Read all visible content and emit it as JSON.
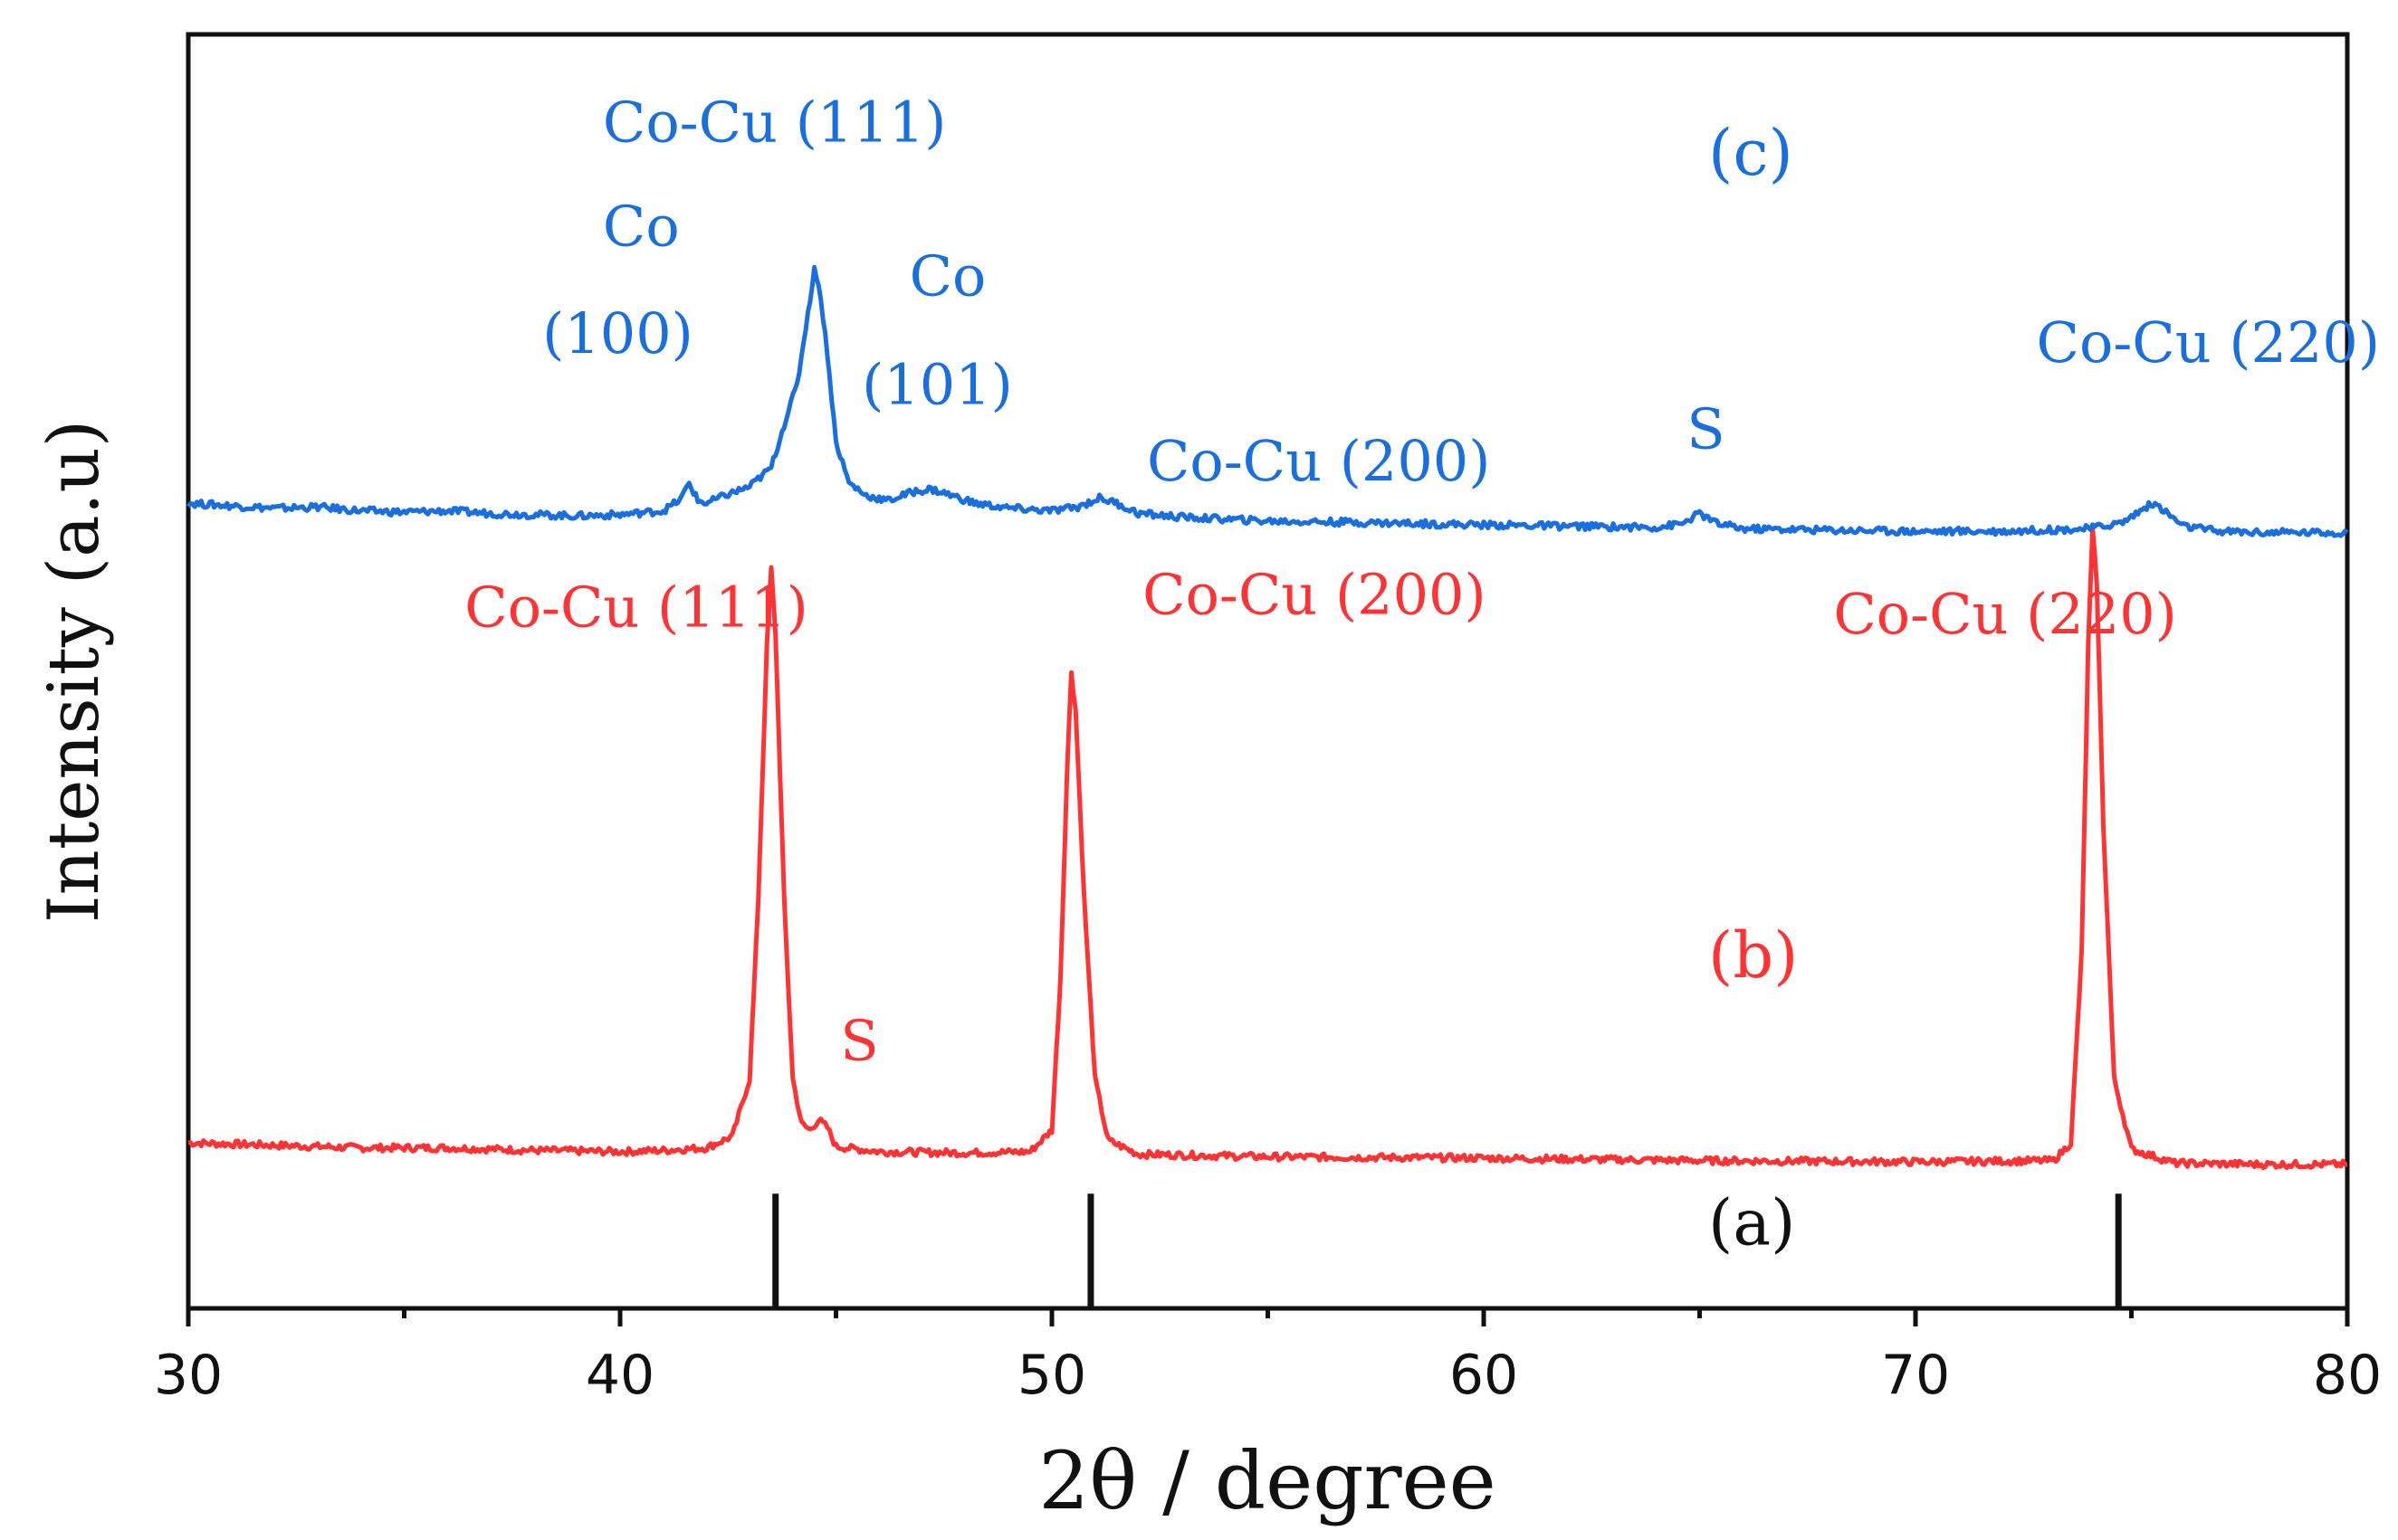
{
  "chart_data": {
    "type": "line",
    "title": "",
    "xlabel": "2θ / degree",
    "ylabel": "Intensity (a.u)",
    "xlim": [
      30,
      80
    ],
    "ylim": [
      0,
      100
    ],
    "x_ticks": [
      30,
      40,
      50,
      60,
      70,
      80
    ],
    "x_ticks_minor": [
      35,
      45,
      55,
      65,
      75
    ],
    "grid": false,
    "legend": "none",
    "colors": {
      "b": "#ff3333",
      "c": "#1a6fe0",
      "a": "#111111",
      "axis": "#111111"
    },
    "curve_labels": [
      {
        "series": "c",
        "text": "(c)",
        "x": 65.2,
        "y": 89
      },
      {
        "series": "b",
        "text": "(b)",
        "x": 65.2,
        "y": 26
      },
      {
        "series": "a",
        "text": "(a)",
        "x": 65.2,
        "y": 5
      }
    ],
    "reference_a": {
      "name": "(a)",
      "lines": [
        {
          "x": 43.6,
          "y_top": 9
        },
        {
          "x": 50.9,
          "y_top": 9
        },
        {
          "x": 74.7,
          "y_top": 9
        }
      ]
    },
    "series": [
      {
        "name": "(b)",
        "points": [
          [
            30,
            13.0
          ],
          [
            32,
            12.8
          ],
          [
            34,
            12.6
          ],
          [
            36,
            12.6
          ],
          [
            38,
            12.4
          ],
          [
            40,
            12.3
          ],
          [
            41,
            12.4
          ],
          [
            42,
            12.6
          ],
          [
            42.6,
            13.5
          ],
          [
            43.0,
            18
          ],
          [
            43.2,
            32
          ],
          [
            43.4,
            52
          ],
          [
            43.5,
            58
          ],
          [
            43.6,
            53
          ],
          [
            43.8,
            32
          ],
          [
            44.0,
            18
          ],
          [
            44.2,
            14.5
          ],
          [
            44.4,
            14.0
          ],
          [
            44.6,
            14.8
          ],
          [
            44.8,
            14.2
          ],
          [
            45.0,
            12.7
          ],
          [
            46,
            12.3
          ],
          [
            48,
            12.2
          ],
          [
            49.5,
            12.3
          ],
          [
            50.0,
            14
          ],
          [
            50.2,
            26
          ],
          [
            50.35,
            42
          ],
          [
            50.45,
            50
          ],
          [
            50.55,
            47
          ],
          [
            50.75,
            32
          ],
          [
            51.0,
            18
          ],
          [
            51.3,
            13.2
          ],
          [
            52,
            12.1
          ],
          [
            55,
            11.9
          ],
          [
            60,
            11.8
          ],
          [
            65,
            11.6
          ],
          [
            70,
            11.5
          ],
          [
            73.2,
            11.6
          ],
          [
            73.6,
            13
          ],
          [
            73.85,
            28
          ],
          [
            74.0,
            52
          ],
          [
            74.1,
            61
          ],
          [
            74.2,
            57
          ],
          [
            74.35,
            38
          ],
          [
            74.6,
            18
          ],
          [
            75.0,
            12.5
          ],
          [
            76,
            11.4
          ],
          [
            78,
            11.3
          ],
          [
            80,
            11.3
          ]
        ],
        "annotations": [
          {
            "text": "Co-Cu (111)",
            "x": 36.4,
            "y": 53.5
          },
          {
            "text": "S",
            "x": 45.1,
            "y": 19.5
          },
          {
            "text": "Co-Cu (200)",
            "x": 52.1,
            "y": 54.5
          },
          {
            "text": "Co-Cu (220)",
            "x": 68.1,
            "y": 53.0
          }
        ]
      },
      {
        "name": "(c)",
        "points": [
          [
            30,
            63.2
          ],
          [
            31,
            63.0
          ],
          [
            32,
            62.8
          ],
          [
            33,
            62.9
          ],
          [
            34,
            62.6
          ],
          [
            35,
            62.5
          ],
          [
            36,
            62.6
          ],
          [
            37,
            62.4
          ],
          [
            38,
            62.3
          ],
          [
            39,
            62.2
          ],
          [
            40,
            62.3
          ],
          [
            41,
            62.6
          ],
          [
            41.4,
            63.5
          ],
          [
            41.6,
            64.8
          ],
          [
            41.8,
            63.4
          ],
          [
            42.0,
            63.2
          ],
          [
            42.5,
            63.9
          ],
          [
            43.0,
            64.5
          ],
          [
            43.5,
            66.0
          ],
          [
            43.9,
            70.5
          ],
          [
            44.1,
            72.5
          ],
          [
            44.3,
            77
          ],
          [
            44.5,
            81.5
          ],
          [
            44.6,
            80.5
          ],
          [
            44.8,
            75
          ],
          [
            45.0,
            68
          ],
          [
            45.3,
            64.8
          ],
          [
            45.7,
            63.8
          ],
          [
            46.2,
            63.4
          ],
          [
            46.8,
            64.1
          ],
          [
            47.2,
            64.3
          ],
          [
            47.6,
            63.9
          ],
          [
            48.2,
            63.2
          ],
          [
            49,
            62.8
          ],
          [
            50,
            62.6
          ],
          [
            50.6,
            62.9
          ],
          [
            51.1,
            63.6
          ],
          [
            51.5,
            63.2
          ],
          [
            52,
            62.4
          ],
          [
            53,
            62.1
          ],
          [
            55,
            61.8
          ],
          [
            57,
            61.7
          ],
          [
            60,
            61.5
          ],
          [
            62,
            61.4
          ],
          [
            64,
            61.3
          ],
          [
            64.6,
            61.6
          ],
          [
            65.0,
            62.4
          ],
          [
            65.4,
            61.6
          ],
          [
            66,
            61.2
          ],
          [
            68,
            61.1
          ],
          [
            70,
            61.0
          ],
          [
            72,
            61.0
          ],
          [
            73,
            61.1
          ],
          [
            74,
            61.2
          ],
          [
            74.8,
            61.7
          ],
          [
            75.2,
            62.6
          ],
          [
            75.5,
            63.2
          ],
          [
            75.8,
            62.5
          ],
          [
            76.2,
            61.4
          ],
          [
            77,
            61.0
          ],
          [
            78,
            60.9
          ],
          [
            80,
            60.9
          ]
        ],
        "annotations": [
          {
            "text": "Co-Cu (111)",
            "x": 39.6,
            "y": 91.6
          },
          {
            "text": "Co",
            "x": 39.6,
            "y": 83.4
          },
          {
            "text": "(100)",
            "x": 38.2,
            "y": 75.0
          },
          {
            "text": "Co",
            "x": 46.7,
            "y": 79.5
          },
          {
            "text": "(101)",
            "x": 45.6,
            "y": 71.0
          },
          {
            "text": "Co-Cu (200)",
            "x": 52.2,
            "y": 65.0
          },
          {
            "text": "S",
            "x": 64.7,
            "y": 67.5
          },
          {
            "text": "Co-Cu (220)",
            "x": 72.8,
            "y": 74.3
          }
        ]
      }
    ]
  }
}
